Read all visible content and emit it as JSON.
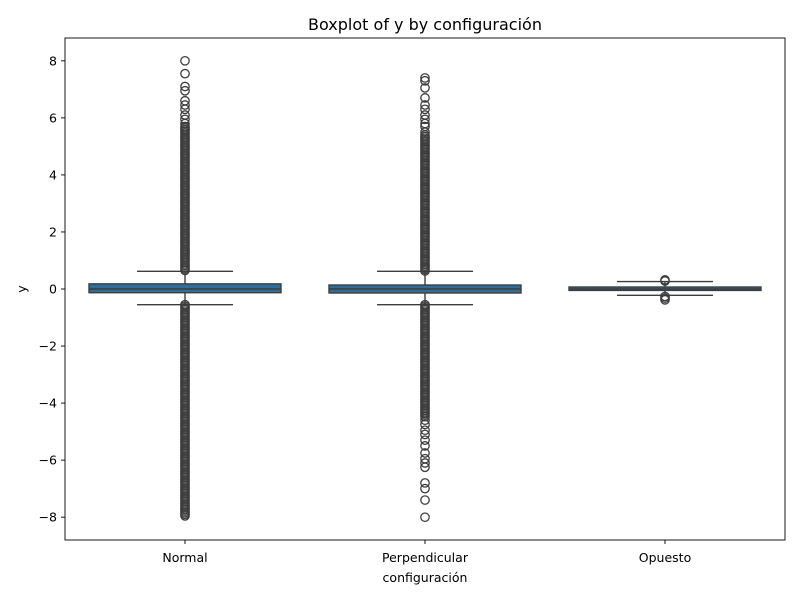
{
  "chart_data": {
    "type": "boxplot",
    "title": "Boxplot of y by configuración",
    "xlabel": "configuración",
    "ylabel": "y",
    "ylim": [
      -8.8,
      8.8
    ],
    "yticks": [
      -8,
      -6,
      -4,
      -2,
      0,
      2,
      4,
      6,
      8
    ],
    "ytick_labels": [
      "−8",
      "−6",
      "−4",
      "−2",
      "0",
      "2",
      "4",
      "6",
      "8"
    ],
    "grid": false,
    "box_color": "#2f6e99",
    "categories": [
      "Normal",
      "Perpendicular",
      "Opuesto"
    ],
    "boxes": [
      {
        "category": "Normal",
        "q1": -0.13,
        "median": 0.0,
        "q3": 0.18,
        "whisker_low": -0.55,
        "whisker_high": 0.62,
        "outliers_high_range": [
          0.62,
          8.0
        ],
        "outliers_low_range": [
          -8.0,
          -0.55
        ]
      },
      {
        "category": "Perpendicular",
        "q1": -0.14,
        "median": 0.0,
        "q3": 0.14,
        "whisker_low": -0.55,
        "whisker_high": 0.62,
        "outliers_high_range": [
          0.62,
          7.4
        ],
        "outliers_low_range": [
          -8.0,
          -0.55
        ]
      },
      {
        "category": "Opuesto",
        "q1": -0.05,
        "median": 0.0,
        "q3": 0.07,
        "whisker_low": -0.22,
        "whisker_high": 0.26,
        "outliers_high_range": [
          0.26,
          0.32
        ],
        "outliers_low_range": [
          -0.38,
          -0.22
        ]
      }
    ],
    "sparse_outliers": {
      "Normal": [
        8.0,
        7.55,
        7.1,
        6.95,
        6.6,
        6.45,
        6.3,
        6.1,
        5.95,
        5.8
      ],
      "Perpendicular": [
        7.4,
        7.3,
        7.05,
        6.7,
        6.45,
        6.3,
        6.1,
        5.95,
        5.8,
        5.7,
        5.5,
        -4.6,
        -4.75,
        -4.95,
        -5.1,
        -5.3,
        -5.5,
        -5.75,
        -5.95,
        -6.1,
        -6.25,
        -6.8,
        -7.0,
        -7.4,
        -8.0
      ],
      "Opuesto": [
        0.32,
        0.28,
        -0.26,
        -0.32,
        -0.38
      ]
    },
    "dense_outlier_ranges": {
      "Normal": [
        [
          0.62,
          5.7
        ],
        [
          -8.0,
          -0.55
        ]
      ],
      "Perpendicular": [
        [
          0.62,
          5.4
        ],
        [
          -4.5,
          -0.55
        ]
      ],
      "Opuesto": []
    }
  }
}
